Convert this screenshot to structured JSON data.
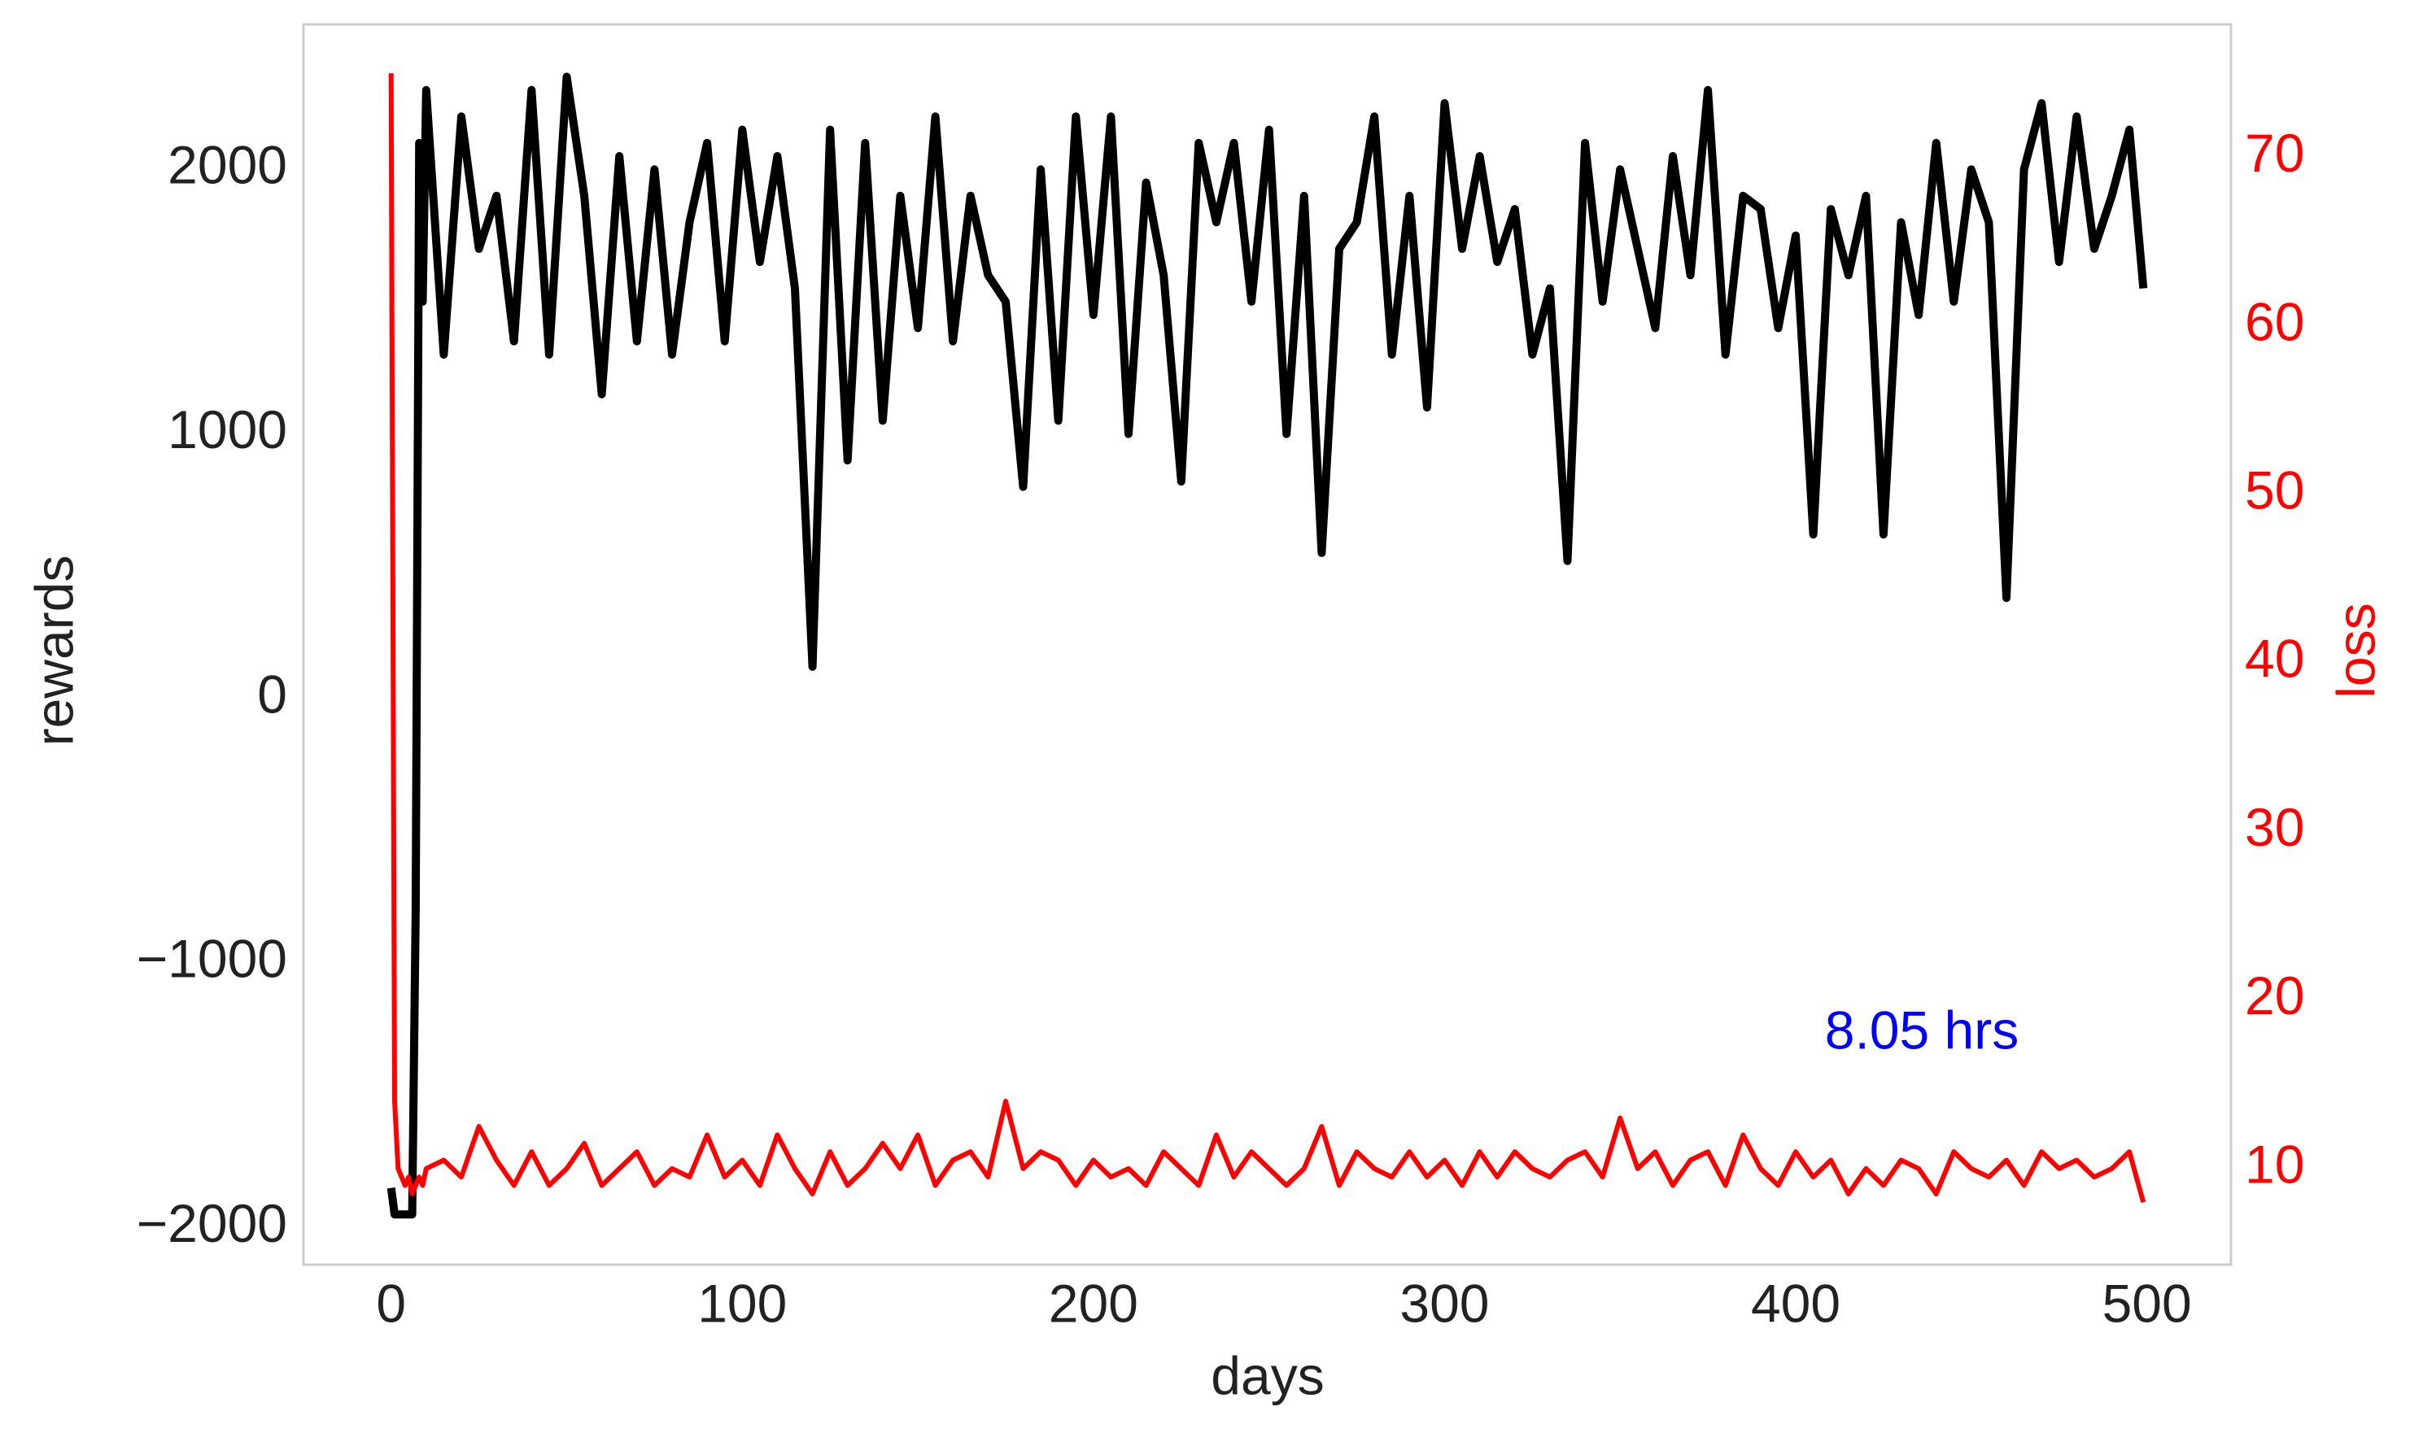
{
  "chart_data": {
    "type": "line",
    "xlabel": "days",
    "ylabel": "rewards",
    "y2label": "loss",
    "annotation": {
      "text": "8.05 hrs",
      "color": "#0000ff"
    },
    "x": [
      0,
      1,
      2,
      3,
      4,
      5,
      6,
      7,
      8,
      9,
      10,
      15,
      20,
      25,
      30,
      35,
      40,
      45,
      50,
      55,
      60,
      65,
      70,
      75,
      80,
      85,
      90,
      95,
      100,
      105,
      110,
      115,
      120,
      125,
      130,
      135,
      140,
      145,
      150,
      155,
      160,
      165,
      170,
      175,
      180,
      185,
      190,
      195,
      200,
      205,
      210,
      215,
      220,
      225,
      230,
      235,
      240,
      245,
      250,
      255,
      260,
      265,
      270,
      275,
      280,
      285,
      290,
      295,
      300,
      305,
      310,
      315,
      320,
      325,
      330,
      335,
      340,
      345,
      350,
      355,
      360,
      365,
      370,
      375,
      380,
      385,
      390,
      395,
      400,
      405,
      410,
      415,
      420,
      425,
      430,
      435,
      440,
      445,
      450,
      455,
      460,
      465,
      470,
      475,
      480,
      485,
      490,
      495,
      499
    ],
    "series": [
      {
        "color": "#000000",
        "values": [
          -1850,
          -1950,
          -1950,
          -1950,
          -1950,
          -1950,
          -1950,
          -800,
          2100,
          1500,
          2300,
          1300,
          2200,
          1700,
          1900,
          1350,
          2300,
          1300,
          2350,
          1900,
          1150,
          2050,
          1350,
          2000,
          1300,
          1800,
          2100,
          1350,
          2150,
          1650,
          2050,
          1550,
          120,
          2150,
          900,
          2100,
          1050,
          1900,
          1400,
          2200,
          1350,
          1900,
          1600,
          1500,
          800,
          2000,
          1050,
          2200,
          1450,
          2200,
          1000,
          1950,
          1600,
          820,
          2100,
          1800,
          2100,
          1500,
          2150,
          1000,
          1900,
          550,
          1700,
          1800,
          2200,
          1300,
          1900,
          1100,
          2250,
          1700,
          2050,
          1650,
          1850,
          1300,
          1550,
          520,
          2100,
          1500,
          2000,
          1700,
          1400,
          2050,
          1600,
          2300,
          1300,
          1900,
          1850,
          1400,
          1750,
          620,
          1850,
          1600,
          1900,
          620,
          1800,
          1450,
          2100,
          1500,
          2000,
          1800,
          380,
          2000,
          2250,
          1650,
          2200,
          1700,
          1900,
          2150,
          1550
        ]
      },
      {
        "color": "#ff0000",
        "axis": "y2",
        "values": [
          75,
          14,
          10,
          9.5,
          9,
          9.5,
          8.5,
          9,
          9.5,
          9,
          10,
          10.5,
          9.5,
          12.5,
          10.5,
          9,
          11,
          9,
          10,
          11.5,
          9,
          10,
          11,
          9,
          10,
          9.5,
          12,
          9.5,
          10.5,
          9,
          12,
          10,
          8.5,
          11,
          9,
          10,
          11.5,
          10,
          12,
          9,
          10.5,
          11,
          9.5,
          14,
          10,
          11,
          10.5,
          9,
          10.5,
          9.5,
          10,
          9,
          11,
          10,
          9,
          12,
          9.5,
          11,
          10,
          9,
          10,
          12.5,
          9,
          11,
          10,
          9.5,
          11,
          9.5,
          10.5,
          9,
          11,
          9.5,
          11,
          10,
          9.5,
          10.5,
          11,
          9.5,
          13,
          10,
          11,
          9,
          10.5,
          11,
          9,
          12,
          10,
          9,
          11,
          9.5,
          10.5,
          8.5,
          10,
          9,
          10.5,
          10,
          8.5,
          11,
          10,
          9.5,
          10.5,
          9,
          11,
          10,
          10.5,
          9.5,
          10,
          11,
          8
        ]
      }
    ],
    "xlim": [
      -24.95,
      523.95
    ],
    "xticks": [
      0,
      100,
      200,
      300,
      400,
      500
    ],
    "ylim": [
      -2140,
      2548
    ],
    "yticks": [
      {
        "value": -2000,
        "label": "−2000"
      },
      {
        "value": -1000,
        "label": "−1000"
      },
      0,
      1000,
      2000
    ],
    "y2lim": [
      4.3,
      77.9
    ],
    "y2ticks": [
      10,
      20,
      30,
      40,
      50,
      60,
      70
    ],
    "grid": false
  }
}
